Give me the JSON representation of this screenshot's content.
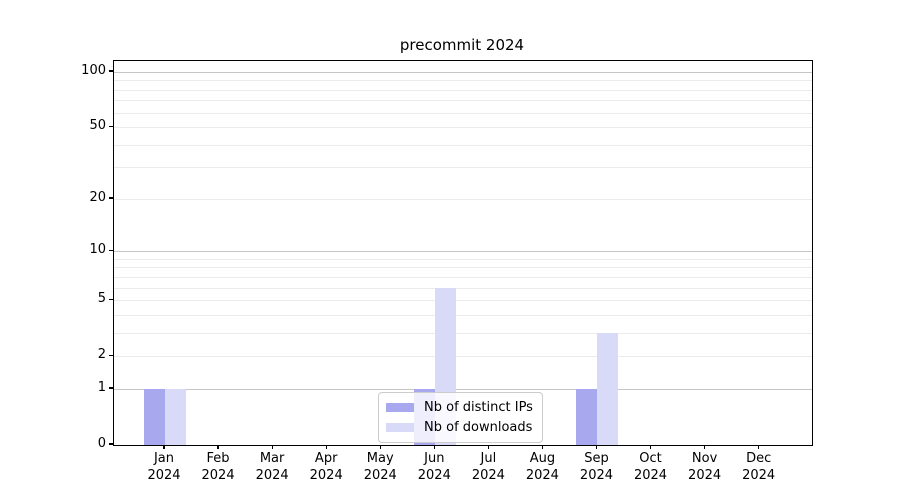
{
  "chart_data": {
    "type": "bar",
    "title": "precommit 2024",
    "categories": [
      "Jan",
      "Feb",
      "Mar",
      "Apr",
      "May",
      "Jun",
      "Jul",
      "Aug",
      "Sep",
      "Oct",
      "Nov",
      "Dec"
    ],
    "year_label": "2024",
    "series": [
      {
        "name": "Nb of distinct IPs",
        "color": "#a8a8ef",
        "values": [
          1,
          0,
          0,
          0,
          0,
          1,
          0,
          0,
          1,
          0,
          0,
          0
        ]
      },
      {
        "name": "Nb of downloads",
        "color": "#d9d9f8",
        "values": [
          1,
          0,
          0,
          0,
          0,
          6,
          0,
          0,
          3,
          0,
          0,
          0
        ]
      }
    ],
    "yscale": "log1p",
    "ylim": [
      0,
      115
    ],
    "yticks": [
      0,
      1,
      2,
      5,
      10,
      20,
      50,
      100
    ],
    "major_gridlines": [
      1,
      10,
      100
    ],
    "minor_gridlines": [
      2,
      3,
      4,
      5,
      6,
      7,
      8,
      9,
      20,
      30,
      40,
      50,
      60,
      70,
      80,
      90
    ],
    "grid": true,
    "legend_position": "lower center",
    "colors": {
      "major_grid": "#c6c6c6",
      "minor_grid": "#ebebeb",
      "spine": "#000000",
      "background": "#ffffff"
    }
  }
}
